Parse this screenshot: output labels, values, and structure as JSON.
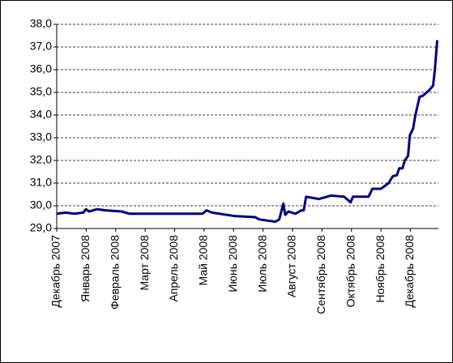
{
  "chart_data": {
    "type": "line",
    "x": [
      0,
      0.3,
      0.6,
      0.9,
      0.99,
      1.1,
      1.37,
      1.65,
      2.2,
      2.47,
      3.0,
      4.0,
      4.95,
      5.08,
      5.27,
      5.77,
      6.04,
      6.73,
      6.87,
      7.14,
      7.42,
      7.55,
      7.69,
      7.75,
      7.86,
      8.1,
      8.3,
      8.38,
      8.46,
      8.9,
      9.3,
      9.75,
      9.97,
      10.05,
      10.58,
      10.71,
      11.0,
      11.26,
      11.4,
      11.54,
      11.62,
      11.73,
      11.81,
      11.92,
      11.98,
      12.09,
      12.17,
      12.31,
      12.42,
      12.64,
      12.77,
      12.83,
      12.91
    ],
    "series": [
      {
        "color": "#000080",
        "values": [
          29.65,
          29.7,
          29.65,
          29.7,
          29.85,
          29.75,
          29.85,
          29.8,
          29.75,
          29.65,
          29.65,
          29.65,
          29.65,
          29.8,
          29.7,
          29.6,
          29.55,
          29.5,
          29.4,
          29.35,
          29.3,
          29.4,
          30.1,
          29.6,
          29.75,
          29.65,
          29.8,
          29.8,
          30.4,
          30.3,
          30.45,
          30.4,
          30.15,
          30.4,
          30.4,
          30.75,
          30.75,
          31.0,
          31.3,
          31.35,
          31.65,
          31.65,
          32.0,
          32.2,
          33.1,
          33.4,
          34.0,
          34.8,
          34.85,
          35.1,
          35.3,
          36.0,
          37.3
        ]
      }
    ],
    "xlim": [
      0,
      12.95
    ],
    "xticks": [
      {
        "value": 0,
        "label": "Декабрь 2007"
      },
      {
        "value": 1,
        "label": "Январь 2008"
      },
      {
        "value": 2,
        "label": "Февраль 2008"
      },
      {
        "value": 3,
        "label": "Март 2008"
      },
      {
        "value": 4,
        "label": "Апрель 2008"
      },
      {
        "value": 5,
        "label": "Май 2008"
      },
      {
        "value": 6,
        "label": "Июнь 2008"
      },
      {
        "value": 7,
        "label": "Июль 2008"
      },
      {
        "value": 8,
        "label": "Август 2008"
      },
      {
        "value": 9,
        "label": "Сентябрь 2008"
      },
      {
        "value": 10,
        "label": "Октябрь 2008"
      },
      {
        "value": 11,
        "label": "Ноябрь 2008"
      },
      {
        "value": 12,
        "label": "Декабрь 2008"
      }
    ],
    "ylim": [
      29,
      38
    ],
    "yticks": [
      {
        "value": 29,
        "label": "29,0"
      },
      {
        "value": 30,
        "label": "30,0"
      },
      {
        "value": 31,
        "label": "31,0"
      },
      {
        "value": 32,
        "label": "32,0"
      },
      {
        "value": 33,
        "label": "33,0"
      },
      {
        "value": 34,
        "label": "34,0"
      },
      {
        "value": 35,
        "label": "35,0"
      },
      {
        "value": 36,
        "label": "36,0"
      },
      {
        "value": 37,
        "label": "37,0"
      },
      {
        "value": 38,
        "label": "38,0"
      }
    ],
    "grid": true
  }
}
